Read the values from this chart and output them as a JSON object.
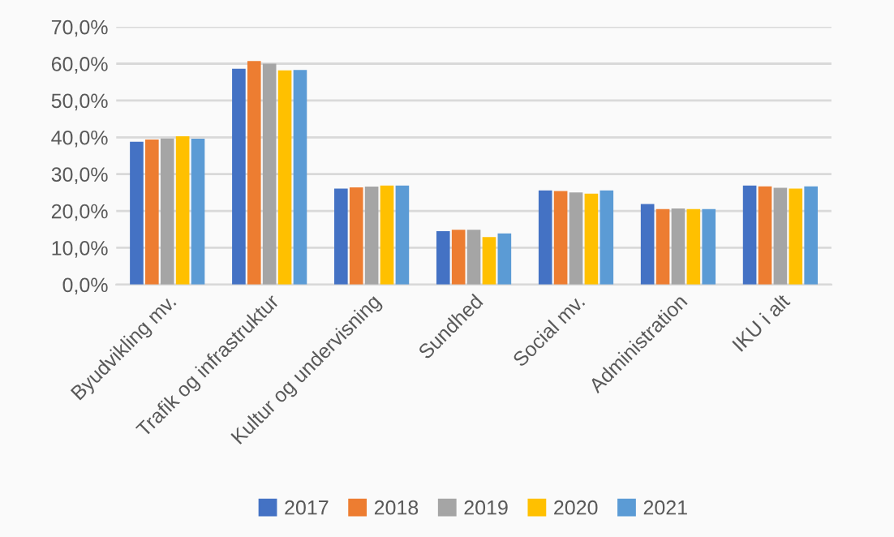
{
  "chart_data": {
    "type": "bar",
    "categories": [
      "Byudvikling mv.",
      "Trafik og infrastruktur",
      "Kultur og undervisning",
      "Sundhed",
      "Social mv.",
      "Administration",
      "IKU i alt"
    ],
    "series": [
      {
        "name": "2017",
        "color": "#4472c4",
        "values": [
          38.8,
          58.6,
          26.1,
          14.5,
          25.6,
          21.9,
          26.9
        ]
      },
      {
        "name": "2018",
        "color": "#ed7d31",
        "values": [
          39.4,
          60.7,
          26.4,
          14.9,
          25.4,
          20.5,
          26.7
        ]
      },
      {
        "name": "2019",
        "color": "#a5a5a5",
        "values": [
          39.7,
          60.0,
          26.6,
          14.9,
          25.0,
          20.7,
          26.3
        ]
      },
      {
        "name": "2020",
        "color": "#ffc000",
        "values": [
          40.3,
          58.2,
          26.9,
          12.9,
          24.7,
          20.5,
          26.1
        ]
      },
      {
        "name": "2021",
        "color": "#5b9bd5",
        "values": [
          39.6,
          58.3,
          26.9,
          13.9,
          25.6,
          20.5,
          26.7
        ]
      }
    ],
    "ylim": [
      0,
      70
    ],
    "yticks": [
      {
        "value": 0,
        "label": "0,0%"
      },
      {
        "value": 10,
        "label": "10,0%"
      },
      {
        "value": 20,
        "label": "20,0%"
      },
      {
        "value": 30,
        "label": "30,0%"
      },
      {
        "value": 40,
        "label": "40,0%"
      },
      {
        "value": 50,
        "label": "50,0%"
      },
      {
        "value": 60,
        "label": "60,0%"
      },
      {
        "value": 70,
        "label": "70,0%"
      }
    ],
    "grid": "y",
    "legend": "bottom"
  }
}
